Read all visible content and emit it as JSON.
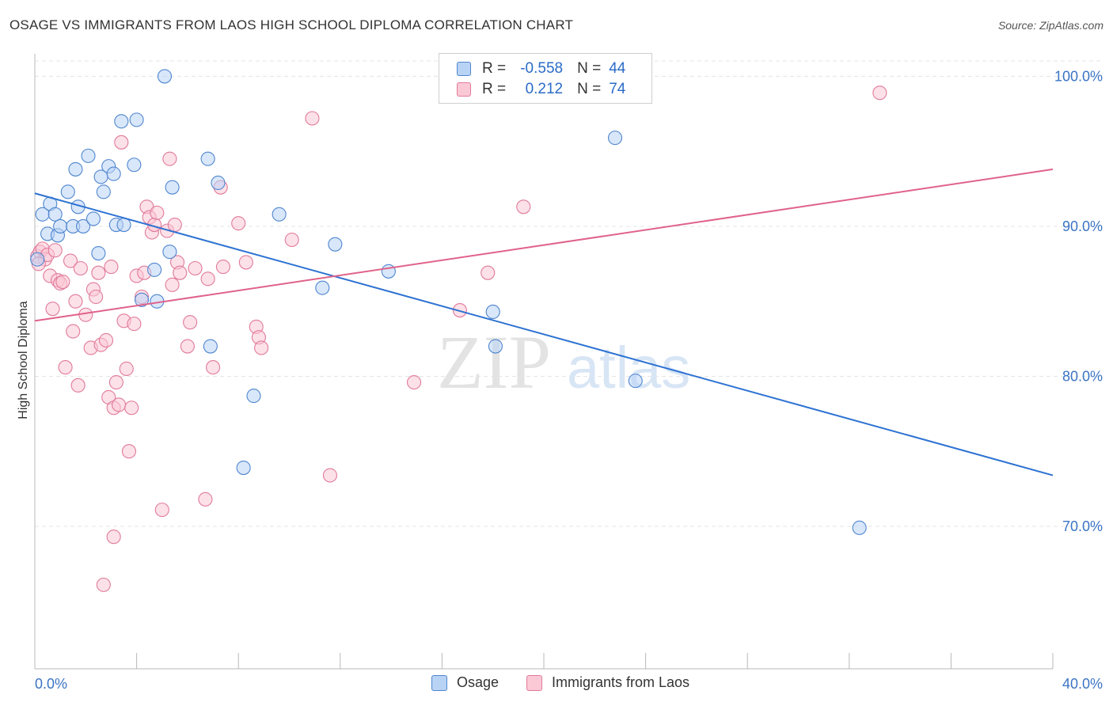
{
  "title": "OSAGE VS IMMIGRANTS FROM LAOS HIGH SCHOOL DIPLOMA CORRELATION CHART",
  "source": "Source: ZipAtlas.com",
  "watermark": {
    "zip": "ZIP",
    "atlas": "atlas"
  },
  "legend_box": {
    "rows": [
      {
        "r_label": "R =",
        "r_value": "-0.558",
        "n_label": "N =",
        "n_value": "44"
      },
      {
        "r_label": "R =",
        "r_value": "0.212",
        "n_label": "N =",
        "n_value": "74"
      }
    ]
  },
  "bottom_legend": [
    "Osage",
    "Immigrants from Laos"
  ],
  "colors": {
    "osage_fill": "#b9d3f5",
    "osage_stroke": "#4f86cf",
    "osage_line": "#2d72d2",
    "laos_fill": "#fbc8d6",
    "laos_stroke": "#e07a9a",
    "laos_line": "#e0628a",
    "axis_label": "#3b74c4",
    "grid": "#e4e4e4"
  },
  "chart_data": {
    "type": "scatter",
    "title": "OSAGE VS IMMIGRANTS FROM LAOS HIGH SCHOOL DIPLOMA CORRELATION CHART",
    "xlabel": "",
    "ylabel": "High School Diploma",
    "xlim": [
      0,
      40
    ],
    "ylim": [
      60.5,
      101.5
    ],
    "x_tick_labels": [
      "0.0%",
      "40.0%"
    ],
    "y_ticks": [
      70,
      80,
      90,
      100
    ],
    "y_tick_labels": [
      "70.0%",
      "80.0%",
      "90.0%",
      "100.0%"
    ],
    "grid": true,
    "legend": "top-center",
    "series": [
      {
        "name": "Osage",
        "R": -0.558,
        "N": 44,
        "trend": {
          "x": [
            0,
            40
          ],
          "y": [
            92.2,
            73.4
          ]
        },
        "points": [
          [
            0.1,
            87.8
          ],
          [
            0.3,
            90.8
          ],
          [
            0.5,
            89.5
          ],
          [
            0.6,
            91.5
          ],
          [
            0.8,
            90.8
          ],
          [
            0.9,
            89.4
          ],
          [
            1.0,
            90.0
          ],
          [
            1.3,
            92.3
          ],
          [
            1.5,
            90.0
          ],
          [
            1.6,
            93.8
          ],
          [
            1.7,
            91.3
          ],
          [
            1.9,
            90.0
          ],
          [
            2.1,
            94.7
          ],
          [
            2.3,
            90.5
          ],
          [
            2.5,
            88.2
          ],
          [
            2.6,
            93.3
          ],
          [
            2.7,
            92.3
          ],
          [
            2.9,
            94.0
          ],
          [
            3.1,
            93.5
          ],
          [
            3.2,
            90.1
          ],
          [
            3.4,
            97.0
          ],
          [
            3.5,
            90.1
          ],
          [
            3.9,
            94.1
          ],
          [
            4.0,
            97.1
          ],
          [
            4.2,
            85.1
          ],
          [
            4.7,
            87.1
          ],
          [
            4.8,
            85.0
          ],
          [
            5.1,
            100.0
          ],
          [
            5.3,
            88.3
          ],
          [
            5.4,
            92.6
          ],
          [
            6.8,
            94.5
          ],
          [
            6.9,
            82.0
          ],
          [
            7.2,
            92.9
          ],
          [
            8.2,
            73.9
          ],
          [
            8.6,
            78.7
          ],
          [
            9.6,
            90.8
          ],
          [
            11.3,
            85.9
          ],
          [
            11.8,
            88.8
          ],
          [
            13.9,
            87.0
          ],
          [
            18.0,
            84.3
          ],
          [
            18.1,
            82.0
          ],
          [
            22.8,
            95.9
          ],
          [
            23.6,
            79.7
          ],
          [
            32.4,
            69.9
          ]
        ]
      },
      {
        "name": "Immigrants from Laos",
        "R": 0.212,
        "N": 74,
        "trend": {
          "x": [
            0,
            40
          ],
          "y": [
            83.7,
            93.8
          ]
        },
        "points": [
          [
            0.1,
            88.0
          ],
          [
            0.2,
            88.3
          ],
          [
            0.3,
            88.5
          ],
          [
            0.4,
            87.8
          ],
          [
            0.5,
            88.1
          ],
          [
            0.6,
            86.7
          ],
          [
            0.7,
            84.5
          ],
          [
            0.8,
            88.4
          ],
          [
            0.9,
            86.4
          ],
          [
            1.0,
            86.2
          ],
          [
            1.1,
            86.3
          ],
          [
            1.2,
            80.6
          ],
          [
            1.4,
            87.7
          ],
          [
            1.5,
            83.0
          ],
          [
            1.6,
            85.0
          ],
          [
            1.7,
            79.4
          ],
          [
            1.8,
            87.2
          ],
          [
            2.0,
            84.1
          ],
          [
            2.2,
            81.9
          ],
          [
            2.3,
            85.8
          ],
          [
            2.4,
            85.3
          ],
          [
            2.5,
            86.9
          ],
          [
            2.6,
            82.1
          ],
          [
            2.8,
            82.4
          ],
          [
            2.9,
            78.6
          ],
          [
            3.0,
            87.3
          ],
          [
            3.1,
            77.9
          ],
          [
            3.2,
            79.6
          ],
          [
            3.3,
            78.1
          ],
          [
            3.4,
            95.6
          ],
          [
            3.5,
            83.7
          ],
          [
            3.6,
            80.5
          ],
          [
            3.7,
            75.0
          ],
          [
            3.8,
            77.9
          ],
          [
            3.9,
            83.5
          ],
          [
            4.0,
            86.7
          ],
          [
            4.2,
            85.3
          ],
          [
            4.3,
            86.9
          ],
          [
            4.4,
            91.3
          ],
          [
            4.5,
            90.6
          ],
          [
            4.6,
            89.6
          ],
          [
            4.7,
            90.1
          ],
          [
            4.8,
            90.9
          ],
          [
            5.0,
            71.1
          ],
          [
            5.2,
            89.7
          ],
          [
            5.3,
            94.5
          ],
          [
            5.4,
            86.1
          ],
          [
            5.5,
            90.1
          ],
          [
            5.6,
            87.6
          ],
          [
            5.7,
            86.9
          ],
          [
            6.0,
            82.0
          ],
          [
            6.1,
            83.6
          ],
          [
            6.3,
            87.2
          ],
          [
            6.7,
            71.8
          ],
          [
            6.8,
            86.5
          ],
          [
            7.0,
            80.6
          ],
          [
            7.3,
            92.6
          ],
          [
            7.4,
            87.3
          ],
          [
            8.0,
            90.2
          ],
          [
            8.3,
            87.6
          ],
          [
            8.7,
            83.3
          ],
          [
            8.8,
            82.6
          ],
          [
            8.9,
            81.9
          ],
          [
            10.1,
            89.1
          ],
          [
            10.9,
            97.2
          ],
          [
            11.6,
            73.4
          ],
          [
            14.9,
            79.6
          ],
          [
            16.7,
            84.4
          ],
          [
            17.8,
            86.9
          ],
          [
            19.2,
            91.3
          ],
          [
            33.2,
            98.9
          ],
          [
            2.7,
            66.1
          ],
          [
            3.1,
            69.3
          ],
          [
            0.15,
            87.5
          ]
        ]
      }
    ]
  }
}
